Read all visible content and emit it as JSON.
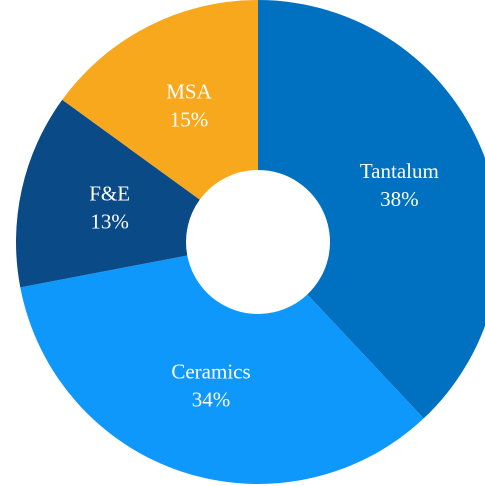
{
  "chart_data": {
    "type": "donut",
    "categories": [
      "Tantalum",
      "Ceramics",
      "F&E",
      "MSA"
    ],
    "values": [
      38,
      34,
      13,
      15
    ],
    "value_labels": [
      "38%",
      "34%",
      "13%",
      "15%"
    ],
    "colors": [
      "#0070c0",
      "#0f98fb",
      "#0a4a86",
      "#f8a81d"
    ]
  }
}
